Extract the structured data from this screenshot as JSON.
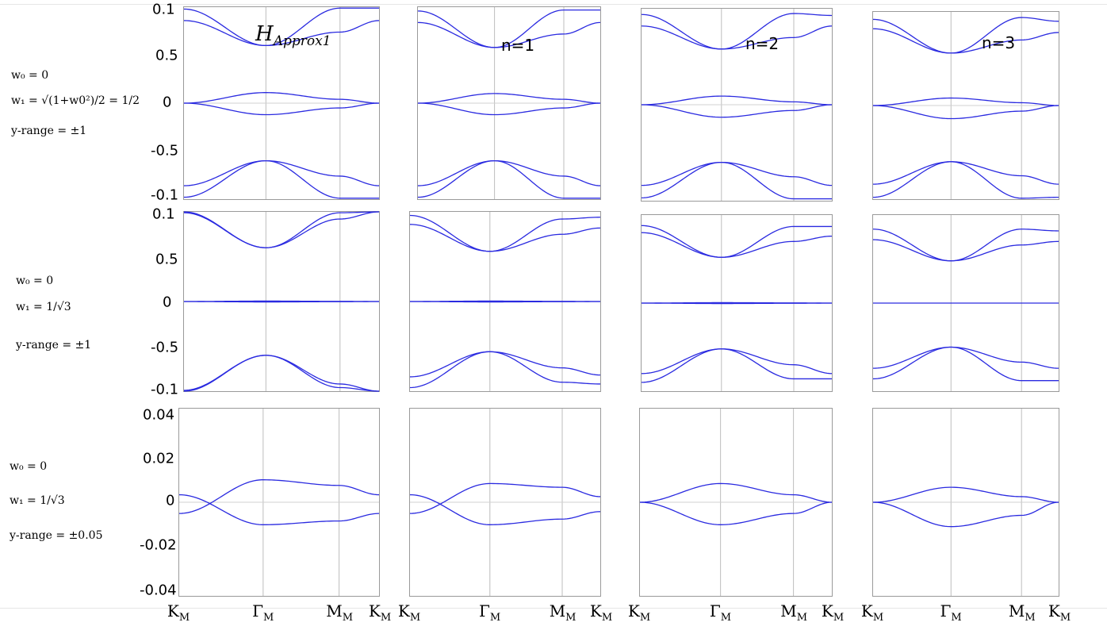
{
  "figure": {
    "row_labels": [
      {
        "l1": "w₀ = 0",
        "l2": "w₁ = √(1+w0²)/2 = 1/2",
        "l3": "y-range = ±1"
      },
      {
        "l1": "w₀ = 0",
        "l2": "w₁ = 1/√3",
        "l3": "y-range = ±1"
      },
      {
        "l1": "w₀ = 0",
        "l2": "w₁ = 1/√3",
        "l3": "y-range = ±0.05"
      }
    ],
    "col_annotations": [
      "H",
      "Approx1",
      "n=1",
      "n=2",
      "n=3"
    ],
    "x_tick_labels": [
      "K",
      "Γ",
      "M",
      "K"
    ],
    "x_tick_sub": "M",
    "y_tick_labels_top": [
      "0.1",
      "0.5",
      "0",
      "-0.5",
      "-0.1"
    ],
    "y_tick_labels_bottom": [
      "0.04",
      "0.02",
      "0",
      "-0.02",
      "-0.04"
    ],
    "colors": {
      "band": "#2a2ae0",
      "grid": "#bdbdbd",
      "frame": "#9a9a9a"
    }
  },
  "chart_data": [
    {
      "id": "r1c1",
      "type": "line",
      "x": [
        "K_M",
        "Γ_M",
        "M_M",
        "K_M"
      ],
      "ylim": [
        -1,
        1
      ],
      "series": [
        {
          "values": [
            0.98,
            0.6,
            0.99,
            0.99
          ]
        },
        {
          "values": [
            0.86,
            0.6,
            0.74,
            0.86
          ]
        },
        {
          "values": [
            0.0,
            0.11,
            0.04,
            0.0
          ]
        },
        {
          "values": [
            0.0,
            -0.12,
            -0.05,
            0.0
          ]
        },
        {
          "values": [
            -0.86,
            -0.6,
            -0.76,
            -0.86
          ]
        },
        {
          "values": [
            -0.98,
            -0.6,
            -0.99,
            -0.99
          ]
        }
      ]
    },
    {
      "id": "r1c2",
      "type": "line",
      "x": [
        "K_M",
        "Γ_M",
        "M_M",
        "K_M"
      ],
      "ylim": [
        -1,
        1
      ],
      "series": [
        {
          "values": [
            0.96,
            0.58,
            0.97,
            0.97
          ]
        },
        {
          "values": [
            0.84,
            0.58,
            0.72,
            0.84
          ]
        },
        {
          "values": [
            0.0,
            0.1,
            0.04,
            0.0
          ]
        },
        {
          "values": [
            0.0,
            -0.12,
            -0.05,
            0.0
          ]
        },
        {
          "values": [
            -0.86,
            -0.6,
            -0.76,
            -0.86
          ]
        },
        {
          "values": [
            -0.98,
            -0.6,
            -0.99,
            -0.99
          ]
        }
      ]
    },
    {
      "id": "r1c3",
      "type": "line",
      "x": [
        "K_M",
        "Γ_M",
        "M_M",
        "K_M"
      ],
      "ylim": [
        -1,
        1
      ],
      "series": [
        {
          "values": [
            0.94,
            0.58,
            0.95,
            0.93
          ]
        },
        {
          "values": [
            0.82,
            0.58,
            0.7,
            0.82
          ]
        },
        {
          "values": [
            0.0,
            0.09,
            0.03,
            0.0
          ]
        },
        {
          "values": [
            0.0,
            -0.13,
            -0.06,
            0.0
          ]
        },
        {
          "values": [
            -0.84,
            -0.6,
            -0.75,
            -0.84
          ]
        },
        {
          "values": [
            -0.97,
            -0.6,
            -0.98,
            -0.98
          ]
        }
      ]
    },
    {
      "id": "r1c4",
      "type": "line",
      "x": [
        "K_M",
        "Γ_M",
        "M_M",
        "K_M"
      ],
      "ylim": [
        -1,
        1
      ],
      "series": [
        {
          "values": [
            0.92,
            0.56,
            0.94,
            0.9
          ]
        },
        {
          "values": [
            0.82,
            0.56,
            0.7,
            0.78
          ]
        },
        {
          "values": [
            0.0,
            0.08,
            0.03,
            0.0
          ]
        },
        {
          "values": [
            0.0,
            -0.14,
            -0.06,
            0.0
          ]
        },
        {
          "values": [
            -0.84,
            -0.6,
            -0.75,
            -0.84
          ]
        },
        {
          "values": [
            -0.98,
            -0.6,
            -0.99,
            -0.98
          ]
        }
      ]
    },
    {
      "id": "r2c1",
      "type": "line",
      "x": [
        "K_M",
        "Γ_M",
        "M_M",
        "K_M"
      ],
      "ylim": [
        -1,
        1
      ],
      "series": [
        {
          "values": [
            1.0,
            0.6,
            0.99,
            1.0
          ]
        },
        {
          "values": [
            0.99,
            0.6,
            0.92,
            1.0
          ]
        },
        {
          "values": [
            0.0,
            0.005,
            0.002,
            0.0
          ]
        },
        {
          "values": [
            0.0,
            -0.005,
            -0.002,
            0.0
          ]
        },
        {
          "values": [
            -0.99,
            -0.6,
            -0.92,
            -1.0
          ]
        },
        {
          "values": [
            -1.0,
            -0.6,
            -0.96,
            -1.0
          ]
        }
      ]
    },
    {
      "id": "r2c2",
      "type": "line",
      "x": [
        "K_M",
        "Γ_M",
        "M_M",
        "K_M"
      ],
      "ylim": [
        -1,
        1
      ],
      "series": [
        {
          "values": [
            0.96,
            0.56,
            0.92,
            0.94
          ]
        },
        {
          "values": [
            0.86,
            0.56,
            0.75,
            0.82
          ]
        },
        {
          "values": [
            0.0,
            0.005,
            0.002,
            0.0
          ]
        },
        {
          "values": [
            0.0,
            -0.005,
            -0.002,
            0.0
          ]
        },
        {
          "values": [
            -0.84,
            -0.56,
            -0.74,
            -0.82
          ]
        },
        {
          "values": [
            -0.96,
            -0.56,
            -0.9,
            -0.92
          ]
        }
      ]
    },
    {
      "id": "r2c3",
      "type": "line",
      "x": [
        "K_M",
        "Γ_M",
        "M_M",
        "K_M"
      ],
      "ylim": [
        -1,
        1
      ],
      "series": [
        {
          "values": [
            0.88,
            0.52,
            0.87,
            0.87
          ]
        },
        {
          "values": [
            0.8,
            0.52,
            0.7,
            0.76
          ]
        },
        {
          "values": [
            0.0,
            0.005,
            0.002,
            0.0
          ]
        },
        {
          "values": [
            0.0,
            -0.005,
            -0.002,
            0.0
          ]
        },
        {
          "values": [
            -0.8,
            -0.52,
            -0.7,
            -0.8
          ]
        },
        {
          "values": [
            -0.9,
            -0.52,
            -0.86,
            -0.86
          ]
        }
      ]
    },
    {
      "id": "r2c4",
      "type": "line",
      "x": [
        "K_M",
        "Γ_M",
        "M_M",
        "K_M"
      ],
      "ylim": [
        -1,
        1
      ],
      "series": [
        {
          "values": [
            0.84,
            0.48,
            0.84,
            0.82
          ]
        },
        {
          "values": [
            0.72,
            0.48,
            0.66,
            0.7
          ]
        },
        {
          "values": [
            0.0,
            0.0,
            0.0,
            0.0
          ]
        },
        {
          "values": [
            -0.74,
            -0.5,
            -0.67,
            -0.74
          ]
        },
        {
          "values": [
            -0.86,
            -0.5,
            -0.88,
            -0.88
          ]
        }
      ]
    },
    {
      "id": "r3c1",
      "type": "line",
      "x": [
        "K_M",
        "Γ_M",
        "M_M",
        "K_M"
      ],
      "ylim": [
        -0.05,
        0.05
      ],
      "series": [
        {
          "values": [
            -0.006,
            0.012,
            0.009,
            0.004
          ]
        },
        {
          "values": [
            0.004,
            -0.012,
            -0.01,
            -0.006
          ]
        }
      ]
    },
    {
      "id": "r3c2",
      "type": "line",
      "x": [
        "K_M",
        "Γ_M",
        "M_M",
        "K_M"
      ],
      "ylim": [
        -0.05,
        0.05
      ],
      "series": [
        {
          "values": [
            -0.006,
            0.01,
            0.008,
            0.003
          ]
        },
        {
          "values": [
            0.004,
            -0.012,
            -0.009,
            -0.005
          ]
        }
      ]
    },
    {
      "id": "r3c3",
      "type": "line",
      "x": [
        "K_M",
        "Γ_M",
        "M_M",
        "K_M"
      ],
      "ylim": [
        -0.05,
        0.05
      ],
      "series": [
        {
          "values": [
            0.0,
            0.01,
            0.004,
            0.0
          ]
        },
        {
          "values": [
            0.0,
            -0.012,
            -0.006,
            0.0
          ]
        }
      ]
    },
    {
      "id": "r3c4",
      "type": "line",
      "x": [
        "K_M",
        "Γ_M",
        "M_M",
        "K_M"
      ],
      "ylim": [
        -0.05,
        0.05
      ],
      "series": [
        {
          "values": [
            0.0,
            0.008,
            0.003,
            0.0
          ]
        },
        {
          "values": [
            0.0,
            -0.013,
            -0.007,
            0.0
          ]
        }
      ]
    }
  ]
}
